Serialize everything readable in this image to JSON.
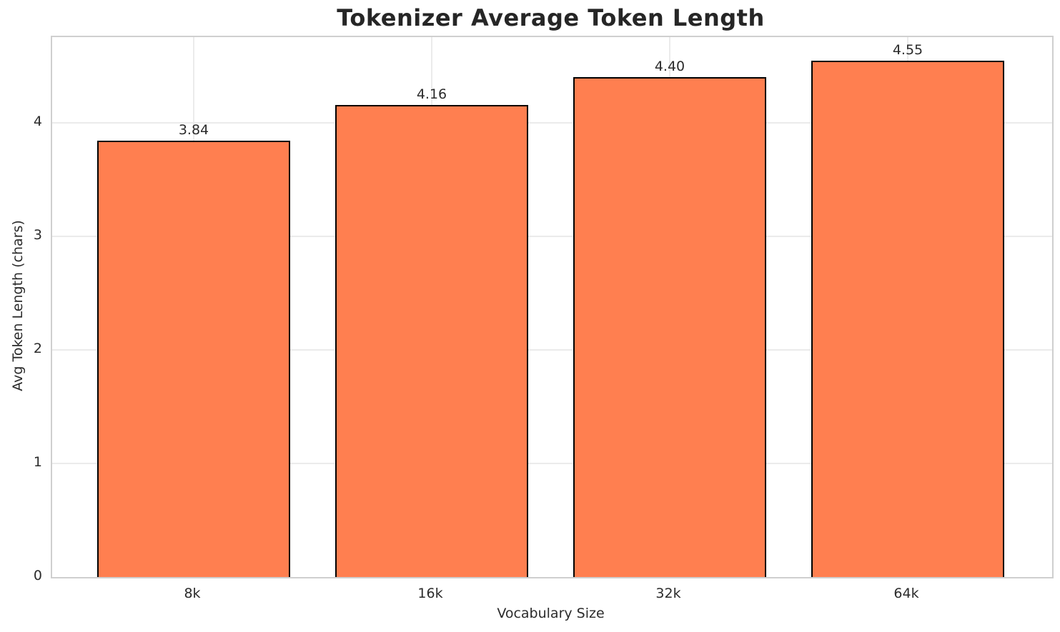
{
  "chart_data": {
    "type": "bar",
    "title": "Tokenizer Average Token Length",
    "xlabel": "Vocabulary Size",
    "ylabel": "Avg Token Length (chars)",
    "categories": [
      "8k",
      "16k",
      "32k",
      "64k"
    ],
    "values": [
      3.84,
      4.16,
      4.4,
      4.55
    ],
    "value_labels": [
      "3.84",
      "4.16",
      "4.40",
      "4.55"
    ],
    "yticks": [
      0,
      1,
      2,
      3,
      4
    ],
    "ytick_labels": [
      "0",
      "1",
      "2",
      "3",
      "4"
    ],
    "ylim": [
      0,
      4.755
    ],
    "grid": true,
    "legend": "none",
    "colors": {
      "bar_fill": "#ff7f50",
      "bar_edge": "#000000",
      "grid": "#ebebeb",
      "spine": "#cfcfcf",
      "text": "#2b2b2b",
      "title": "#262626"
    }
  }
}
